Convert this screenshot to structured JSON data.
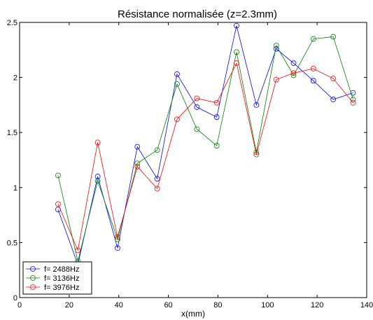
{
  "chart_data": {
    "type": "line",
    "title": "Résistance normalisée (z=2.3mm)",
    "xlabel": "x(mm)",
    "ylabel": "",
    "xlim": [
      0,
      140
    ],
    "ylim": [
      0,
      2.5
    ],
    "xticks": [
      0,
      20,
      40,
      60,
      80,
      100,
      120,
      140
    ],
    "yticks": [
      0,
      0.5,
      1,
      1.5,
      2,
      2.5
    ],
    "grid": false,
    "legend_position": "bottom-left",
    "x": [
      15.5,
      23.5,
      31.5,
      39.5,
      47.5,
      55.5,
      63.5,
      71.5,
      79.5,
      87.5,
      95.5,
      103.5,
      110.5,
      118.5,
      126.5,
      134.5
    ],
    "series": [
      {
        "name": "f= 2488Hz",
        "color": "#0000ff",
        "marker": "circle",
        "values": [
          0.8,
          0.3,
          1.1,
          0.45,
          1.37,
          1.08,
          2.03,
          1.73,
          1.64,
          2.47,
          1.75,
          2.26,
          2.13,
          1.97,
          1.8,
          1.86
        ]
      },
      {
        "name": "f= 3136Hz",
        "color": "#008000",
        "marker": "circle",
        "values": [
          1.11,
          0.33,
          1.06,
          0.53,
          1.22,
          1.34,
          1.94,
          1.53,
          1.38,
          2.23,
          1.32,
          2.29,
          2.02,
          2.35,
          2.37,
          1.8
        ]
      },
      {
        "name": "f= 3976Hz",
        "color": "#ff0000",
        "marker": "circle",
        "values": [
          0.85,
          0.43,
          1.41,
          0.55,
          1.19,
          0.99,
          1.62,
          1.81,
          1.77,
          2.13,
          1.3,
          1.98,
          2.04,
          2.08,
          1.99,
          1.77
        ]
      }
    ]
  }
}
